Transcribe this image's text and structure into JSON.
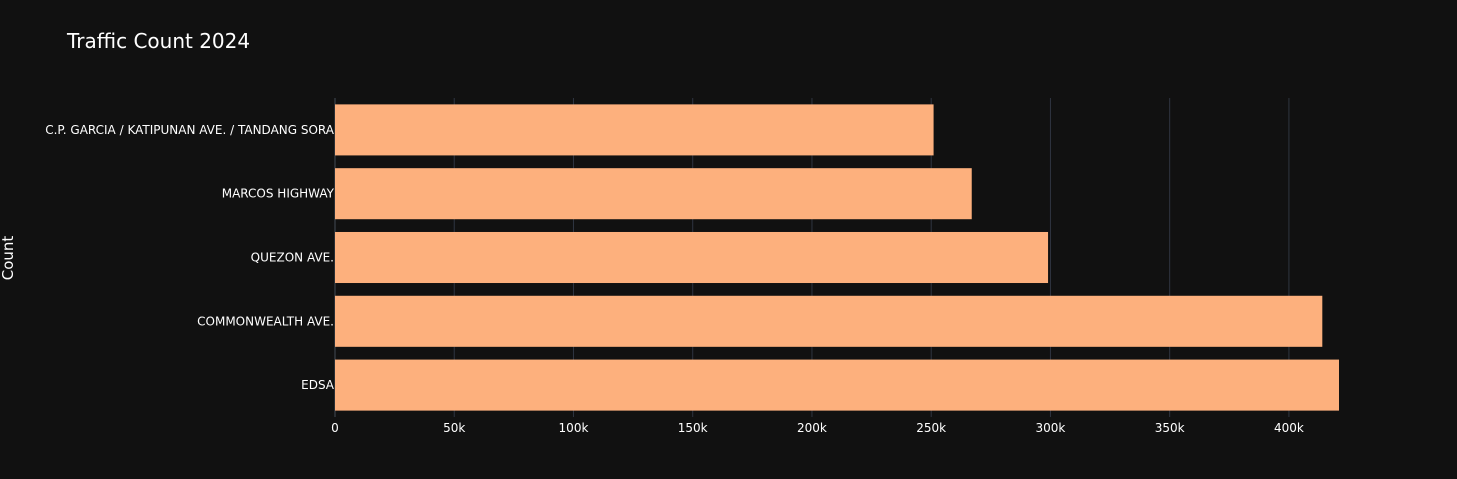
{
  "chart_data": {
    "type": "bar",
    "orientation": "horizontal",
    "title": "Traffic Count 2024",
    "xlabel": "",
    "ylabel": "Count",
    "categories": [
      "C.P. GARCIA / KATIPUNAN AVE. / TANDANG SORA",
      "MARCOS HIGHWAY",
      "QUEZON AVE.",
      "COMMONWEALTH AVE.",
      "EDSA"
    ],
    "values": [
      251000,
      267000,
      299000,
      414000,
      421000
    ],
    "xlim": [
      0,
      421000
    ],
    "xticks": [
      0,
      50000,
      100000,
      150000,
      200000,
      250000,
      300000,
      350000,
      400000
    ],
    "xtick_labels": [
      "0",
      "50k",
      "100k",
      "150k",
      "200k",
      "250k",
      "300k",
      "350k",
      "400k"
    ],
    "grid": true,
    "bar_color": "#fdb07d",
    "background": "#111111"
  }
}
